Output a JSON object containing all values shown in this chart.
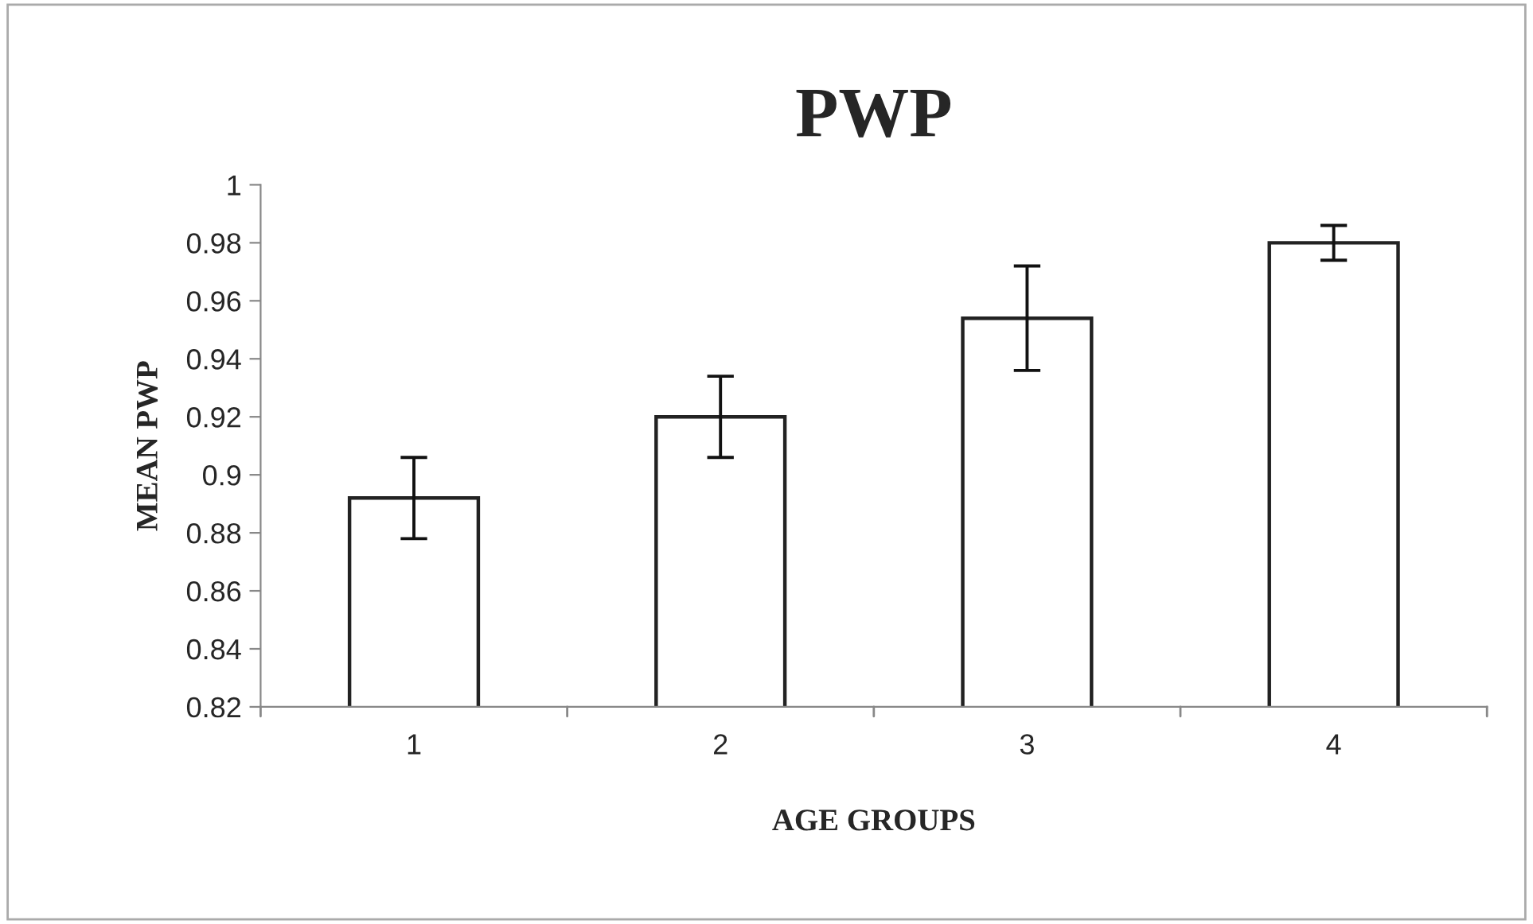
{
  "chart_data": {
    "type": "bar",
    "title": "PWP",
    "xlabel": "AGE GROUPS",
    "ylabel": "MEAN PWP",
    "categories": [
      "1",
      "2",
      "3",
      "4"
    ],
    "values": [
      0.892,
      0.92,
      0.954,
      0.98
    ],
    "errors": [
      0.014,
      0.014,
      0.018,
      0.006
    ],
    "color": "#ffffff",
    "ylim": [
      0.82,
      1.0
    ],
    "yticks": [
      {
        "value": 0.82,
        "label": "0.82"
      },
      {
        "value": 0.84,
        "label": "0.84"
      },
      {
        "value": 0.86,
        "label": "0.86"
      },
      {
        "value": 0.88,
        "label": "0.88"
      },
      {
        "value": 0.9,
        "label": "0.9"
      },
      {
        "value": 0.92,
        "label": "0.92"
      },
      {
        "value": 0.94,
        "label": "0.94"
      },
      {
        "value": 0.96,
        "label": "0.96"
      },
      {
        "value": 0.98,
        "label": "0.98"
      },
      {
        "value": 1.0,
        "label": "1"
      }
    ],
    "grid": false,
    "legend": false
  }
}
